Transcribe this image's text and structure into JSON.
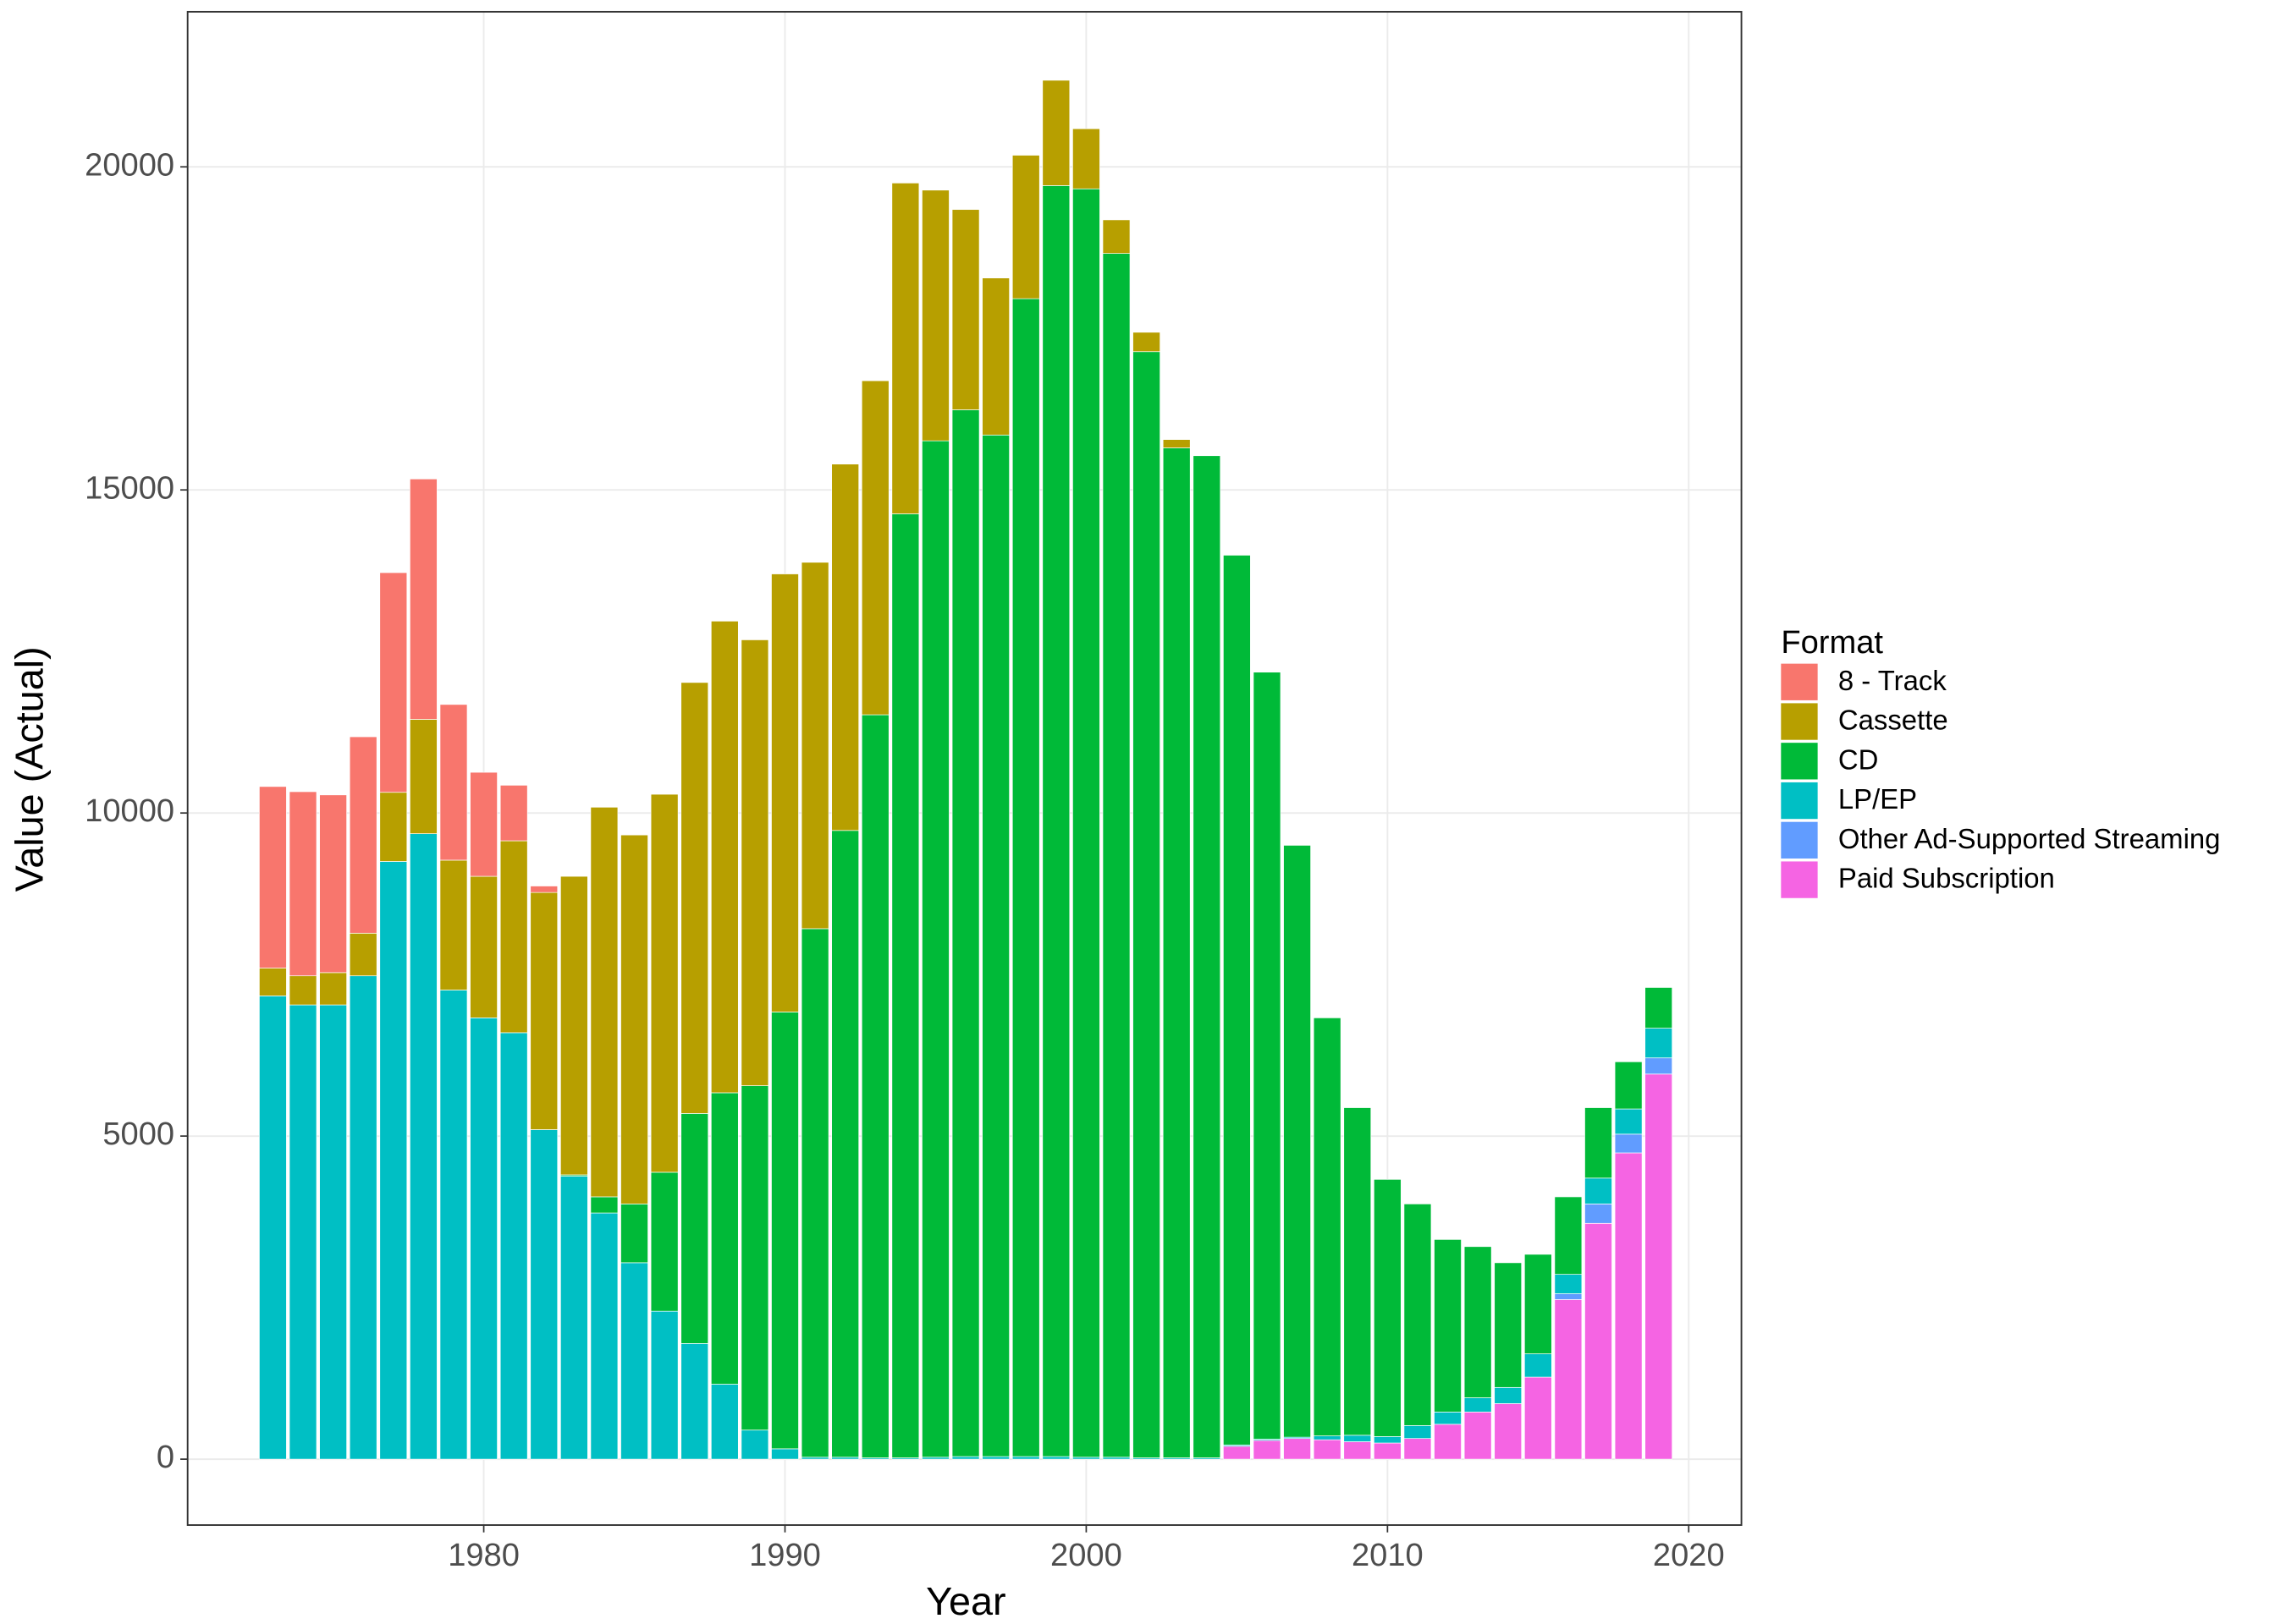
{
  "chart_data": {
    "type": "stacked-bar",
    "xlabel": "Year",
    "ylabel": "Value (Actual)",
    "legend_title": "Format",
    "x": [
      1973,
      1974,
      1975,
      1976,
      1977,
      1978,
      1979,
      1980,
      1981,
      1982,
      1983,
      1984,
      1985,
      1986,
      1987,
      1988,
      1989,
      1990,
      1991,
      1992,
      1993,
      1994,
      1995,
      1996,
      1997,
      1998,
      1999,
      2000,
      2001,
      2002,
      2003,
      2004,
      2005,
      2006,
      2007,
      2008,
      2009,
      2010,
      2011,
      2012,
      2013,
      2014,
      2015,
      2016,
      2017,
      2018,
      2019
    ],
    "series": [
      {
        "name": "8 - Track",
        "color": "#F8766D",
        "values": [
          2810,
          2850,
          2750,
          3040,
          3400,
          3720,
          2410,
          1610,
          860,
          100,
          null,
          null,
          null,
          null,
          null,
          null,
          null,
          null,
          null,
          null,
          null,
          null,
          null,
          null,
          null,
          null,
          null,
          null,
          null,
          null,
          null,
          null,
          null,
          null,
          null,
          null,
          null,
          null,
          null,
          null,
          null,
          null,
          null,
          null,
          null,
          null,
          null
        ]
      },
      {
        "name": "Cassette",
        "color": "#B79F00",
        "values": [
          430,
          450,
          500,
          660,
          1070,
          1770,
          2010,
          2190,
          2970,
          3670,
          4620,
          6030,
          5710,
          5850,
          6670,
          7300,
          6900,
          6780,
          5670,
          5670,
          5170,
          5120,
          3880,
          3100,
          2430,
          2220,
          1630,
          930,
          520,
          300,
          130,
          null,
          null,
          null,
          null,
          null,
          null,
          null,
          null,
          null,
          null,
          null,
          null,
          null,
          null,
          null,
          null
        ]
      },
      {
        "name": "CD",
        "color": "#00BA38",
        "values": [
          null,
          null,
          null,
          null,
          null,
          null,
          null,
          null,
          null,
          null,
          20,
          250,
          910,
          2150,
          3560,
          4510,
          5330,
          6760,
          8180,
          9700,
          11500,
          14610,
          15730,
          16200,
          15810,
          17920,
          19670,
          19630,
          18630,
          17120,
          15630,
          15510,
          13770,
          11870,
          9160,
          6470,
          5070,
          3980,
          3430,
          2670,
          2340,
          1930,
          1540,
          1200,
          1090,
          730,
          630
        ]
      },
      {
        "name": "LP/EP",
        "color": "#00BFC4",
        "values": [
          7170,
          7030,
          7030,
          7480,
          9250,
          9680,
          7260,
          6830,
          6600,
          5100,
          4380,
          3810,
          3040,
          2290,
          1790,
          1160,
          450,
          160,
          30,
          30,
          20,
          20,
          30,
          40,
          40,
          40,
          40,
          30,
          30,
          20,
          20,
          20,
          20,
          20,
          20,
          60,
          100,
          100,
          200,
          190,
          220,
          250,
          360,
          300,
          400,
          390,
          460
        ]
      },
      {
        "name": "Other Ad-Supported Streaming",
        "color": "#619CFF",
        "values": [
          null,
          null,
          null,
          null,
          null,
          null,
          null,
          null,
          null,
          null,
          null,
          null,
          null,
          null,
          null,
          null,
          null,
          null,
          null,
          null,
          null,
          null,
          null,
          null,
          null,
          null,
          null,
          null,
          null,
          null,
          null,
          null,
          null,
          null,
          null,
          null,
          null,
          null,
          null,
          null,
          null,
          null,
          null,
          90,
          300,
          290,
          250
        ]
      },
      {
        "name": "Paid Subscription",
        "color": "#F564E3",
        "values": [
          null,
          null,
          null,
          null,
          null,
          null,
          null,
          null,
          null,
          null,
          null,
          null,
          null,
          null,
          null,
          null,
          null,
          null,
          null,
          null,
          null,
          null,
          null,
          null,
          null,
          null,
          null,
          null,
          null,
          null,
          null,
          null,
          200,
          290,
          320,
          300,
          270,
          250,
          320,
          540,
          730,
          860,
          1270,
          2470,
          3650,
          4740,
          5960
        ]
      }
    ],
    "xlim": [
      1970.17,
      2021.75
    ],
    "xticks": [
      1980,
      1990,
      2000,
      2010,
      2020
    ],
    "ylim": [
      -1020,
      22400
    ],
    "yticks": [
      0,
      5000,
      10000,
      15000,
      20000
    ],
    "grid": true
  }
}
